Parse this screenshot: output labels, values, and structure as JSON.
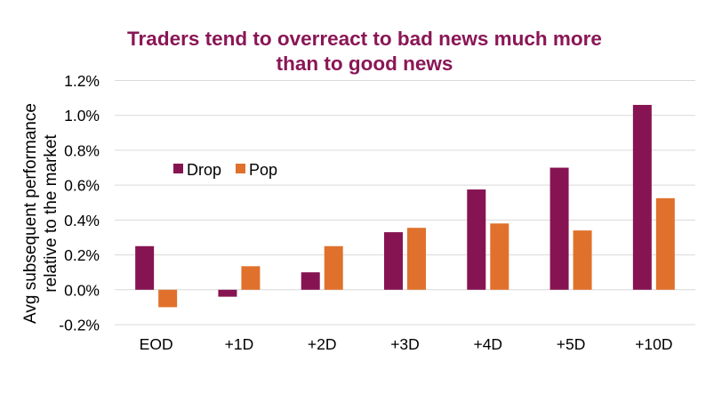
{
  "chart_data": {
    "type": "bar",
    "title_lines": [
      "Traders tend to overreact to bad news much more",
      "than to good news"
    ],
    "ylabel_lines": [
      "Avg subsequent performance",
      "relative to the market"
    ],
    "xlabel": "",
    "categories": [
      "EOD",
      "+1D",
      "+2D",
      "+3D",
      "+4D",
      "+5D",
      "+10D"
    ],
    "series": [
      {
        "name": "Drop",
        "color": "#871452",
        "values": [
          0.25,
          -0.04,
          0.1,
          0.33,
          0.575,
          0.7,
          1.06
        ]
      },
      {
        "name": "Pop",
        "color": "#e0712c",
        "values": [
          -0.1,
          0.135,
          0.25,
          0.355,
          0.38,
          0.34,
          0.525
        ]
      }
    ],
    "ylim": [
      -0.2,
      1.2
    ],
    "yticks": [
      -0.2,
      0.0,
      0.2,
      0.4,
      0.6,
      0.8,
      1.0,
      1.2
    ],
    "ytick_labels": [
      "-0.2%",
      "0.0%",
      "0.2%",
      "0.4%",
      "0.6%",
      "0.8%",
      "1.0%",
      "1.2%"
    ],
    "grid": true,
    "legend_placement": "upper-left inside plot"
  }
}
